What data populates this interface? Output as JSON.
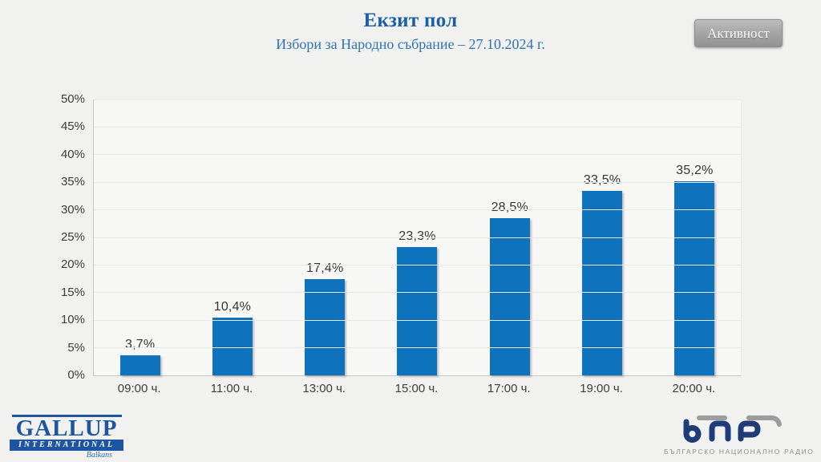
{
  "header": {
    "title": "Екзит пол",
    "subtitle": "Избори за Народно събрание – 27.10.2024 г.",
    "activity_button_label": "Активност"
  },
  "chart_data": {
    "type": "bar",
    "title": "Екзит пол",
    "subtitle": "Избори за Народно събрание – 27.10.2024 г.",
    "categories": [
      "09:00 ч.",
      "11:00 ч.",
      "13:00 ч.",
      "15:00 ч.",
      "17:00 ч.",
      "19:00 ч.",
      "20:00 ч."
    ],
    "values": [
      3.7,
      10.4,
      17.4,
      23.3,
      28.5,
      33.5,
      35.2
    ],
    "value_labels": [
      "3,7%",
      "10,4%",
      "17,4%",
      "23,3%",
      "28,5%",
      "33,5%",
      "35,2%"
    ],
    "xlabel": "",
    "ylabel": "",
    "ylim": [
      0,
      50
    ],
    "ytick_step": 5,
    "ytick_labels": [
      "0%",
      "5%",
      "10%",
      "15%",
      "20%",
      "25%",
      "30%",
      "35%",
      "40%",
      "45%",
      "50%"
    ],
    "grid": true,
    "legend": false,
    "bar_color": "#0e72bd"
  },
  "footer": {
    "gallup_logo": {
      "name": "GALLUP",
      "sub": "INTERNATIONAL",
      "region": "Balkans"
    },
    "bnr_logo": {
      "caption": "БЪЛГАРСКО НАЦИОНАЛНО РАДИО"
    }
  },
  "colors": {
    "background": "#f1f1f0",
    "plot_background": "#f7f7f6",
    "bar": "#0e72bd",
    "title": "#1b5fa5",
    "subtitle": "#2e74b5",
    "button_gray": "#a7a7a7",
    "gallup_blue": "#1d55a0",
    "bnr_navy": "#1f3c78"
  }
}
